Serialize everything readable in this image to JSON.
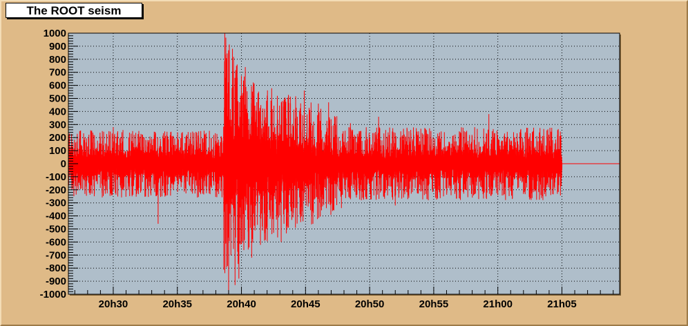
{
  "title": "The ROOT seism",
  "colors": {
    "canvas_bg": "#dfba87",
    "plot_bg": "#afbeca",
    "trace": "#ff0000",
    "grid": "#000000"
  },
  "chart_data": {
    "type": "line",
    "title": "The ROOT seism",
    "xlabel": "",
    "ylabel": "",
    "ylim": [
      -1000,
      1000
    ],
    "xlim_minutes": [
      "20h26.5",
      "21h09.5"
    ],
    "grid": true,
    "yticks": [
      1000,
      900,
      800,
      700,
      600,
      500,
      400,
      300,
      200,
      100,
      0,
      -100,
      -200,
      -300,
      -400,
      -500,
      -600,
      -700,
      -800,
      -900,
      -1000
    ],
    "xticks": [
      "20h30",
      "20h35",
      "20h40",
      "20h45",
      "20h50",
      "20h55",
      "21h00",
      "21h05"
    ],
    "series": [
      {
        "sampling": "approx. every 0.35 s of clock time, values estimated from plot",
        "segments": [
          {
            "from": "20h26.5",
            "to": "20h38.6",
            "amplitude_envelope": 260,
            "character": "background noise"
          },
          {
            "from": "20h38.6",
            "to": "20h40.5",
            "amplitude_envelope": 1000,
            "character": "main shock, large oscillations"
          },
          {
            "from": "20h40.5",
            "to": "20h47.5",
            "amplitude_envelope": 550,
            "character": "decaying coda"
          },
          {
            "from": "20h47.5",
            "to": "21h05.0",
            "amplitude_envelope": 280,
            "character": "background noise"
          },
          {
            "from": "21h05.0",
            "to": "21h09.5",
            "amplitude_envelope": 0,
            "character": "flat line at 0"
          }
        ],
        "notable_peaks": [
          {
            "x": "20h38.7",
            "y": 1000
          },
          {
            "x": "20h39.0",
            "y": -1000
          },
          {
            "x": "20h39.3",
            "y": 880
          },
          {
            "x": "20h39.5",
            "y": -930
          },
          {
            "x": "20h39.8",
            "y": -880
          },
          {
            "x": "20h40.3",
            "y": 740
          },
          {
            "x": "20h40.8",
            "y": -720
          },
          {
            "x": "20h41.8",
            "y": -590
          },
          {
            "x": "20h42.8",
            "y": 520
          },
          {
            "x": "20h43.1",
            "y": -600
          },
          {
            "x": "20h44.9",
            "y": 560
          },
          {
            "x": "20h46.0",
            "y": 460
          },
          {
            "x": "20h46.8",
            "y": 470
          },
          {
            "x": "20h47.8",
            "y": -340
          },
          {
            "x": "20h48.5",
            "y": 310
          },
          {
            "x": "20h50.7",
            "y": 360
          },
          {
            "x": "20h30.0",
            "y": 280
          },
          {
            "x": "20h33.5",
            "y": -460
          },
          {
            "x": "20h52.0",
            "y": -320
          },
          {
            "x": "20h59.3",
            "y": 380
          }
        ]
      }
    ]
  }
}
